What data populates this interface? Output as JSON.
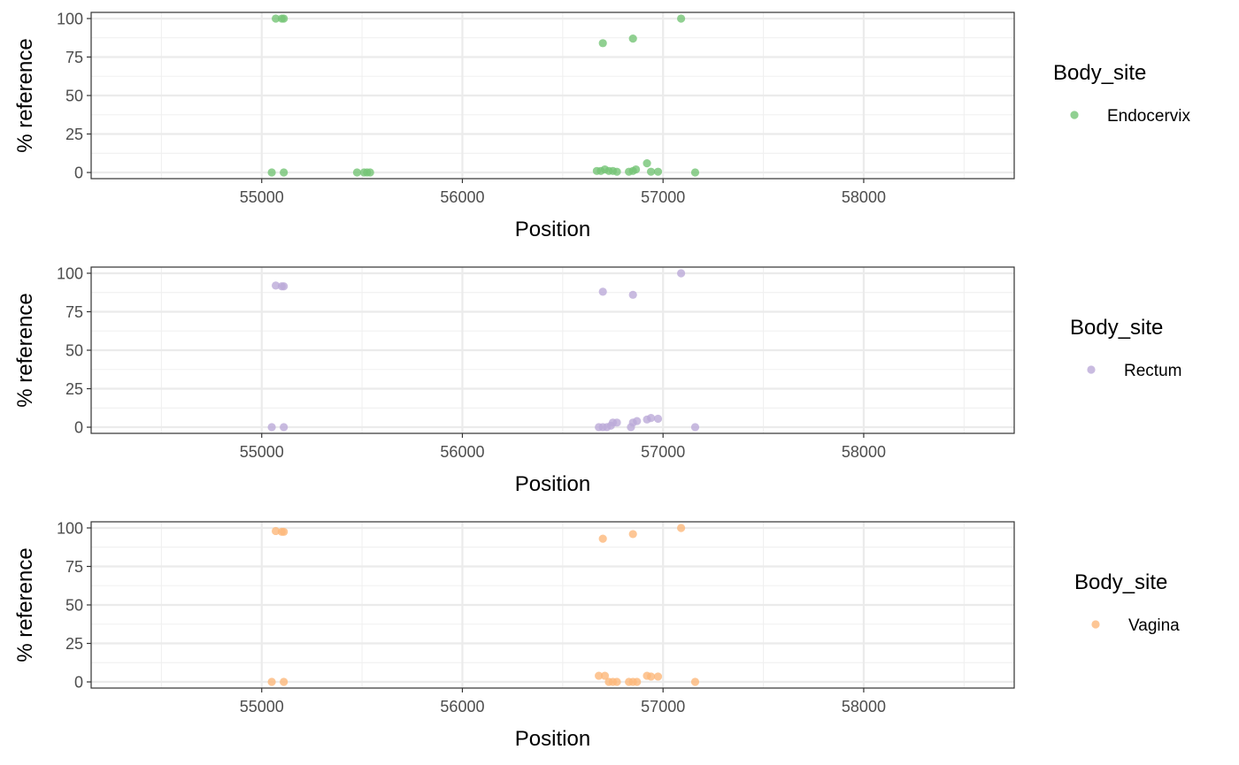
{
  "chart_data": [
    {
      "type": "scatter",
      "xlabel": "Position",
      "ylabel": "% reference",
      "xlim": [
        54150,
        58750
      ],
      "ylim": [
        -4,
        104
      ],
      "x_ticks": [
        55000,
        56000,
        57000,
        58000
      ],
      "x_tick_labels": [
        "55000",
        "56000",
        "57000",
        "58000"
      ],
      "y_ticks": [
        0,
        25,
        50,
        75,
        100
      ],
      "y_tick_labels": [
        "0",
        "25",
        "50",
        "75",
        "100"
      ],
      "grid": true,
      "legend": {
        "title": "Body_site",
        "entries": [
          "Endocervix"
        ],
        "placement": "right"
      },
      "series": [
        {
          "name": "Endocervix",
          "color": "#74c476",
          "points": [
            [
              55070,
              100
            ],
            [
              55100,
              100
            ],
            [
              55110,
              100
            ],
            [
              56700,
              84
            ],
            [
              56850,
              87
            ],
            [
              57090,
              100
            ],
            [
              55050,
              0
            ],
            [
              55110,
              0
            ],
            [
              55475,
              0
            ],
            [
              55510,
              0
            ],
            [
              55525,
              0
            ],
            [
              55540,
              0
            ],
            [
              56670,
              1
            ],
            [
              56690,
              1
            ],
            [
              56710,
              2
            ],
            [
              56730,
              1
            ],
            [
              56750,
              1
            ],
            [
              56770,
              0.5
            ],
            [
              56830,
              0.5
            ],
            [
              56850,
              1
            ],
            [
              56865,
              2
            ],
            [
              56920,
              6
            ],
            [
              56940,
              0.5
            ],
            [
              56975,
              0.5
            ],
            [
              57160,
              0
            ]
          ]
        }
      ]
    },
    {
      "type": "scatter",
      "xlabel": "Position",
      "ylabel": "% reference",
      "xlim": [
        54150,
        58750
      ],
      "ylim": [
        -4,
        104
      ],
      "x_ticks": [
        55000,
        56000,
        57000,
        58000
      ],
      "x_tick_labels": [
        "55000",
        "56000",
        "57000",
        "58000"
      ],
      "y_ticks": [
        0,
        25,
        50,
        75,
        100
      ],
      "y_tick_labels": [
        "0",
        "25",
        "50",
        "75",
        "100"
      ],
      "grid": true,
      "legend": {
        "title": "Body_site",
        "entries": [
          "Rectum"
        ],
        "placement": "right"
      },
      "series": [
        {
          "name": "Rectum",
          "color": "#bcaad8",
          "points": [
            [
              55070,
              92
            ],
            [
              55100,
              91.5
            ],
            [
              55110,
              91.5
            ],
            [
              56700,
              88
            ],
            [
              56850,
              86
            ],
            [
              57090,
              100
            ],
            [
              55050,
              0
            ],
            [
              55110,
              0
            ],
            [
              56680,
              0
            ],
            [
              56700,
              0
            ],
            [
              56720,
              0
            ],
            [
              56740,
              1
            ],
            [
              56750,
              3
            ],
            [
              56770,
              3
            ],
            [
              56840,
              0
            ],
            [
              56850,
              3
            ],
            [
              56870,
              4
            ],
            [
              56920,
              5
            ],
            [
              56940,
              6
            ],
            [
              56975,
              5.5
            ],
            [
              57160,
              0
            ]
          ]
        }
      ]
    },
    {
      "type": "scatter",
      "xlabel": "Position",
      "ylabel": "% reference",
      "xlim": [
        54150,
        58750
      ],
      "ylim": [
        -4,
        104
      ],
      "x_ticks": [
        55000,
        56000,
        57000,
        58000
      ],
      "x_tick_labels": [
        "55000",
        "56000",
        "57000",
        "58000"
      ],
      "y_ticks": [
        0,
        25,
        50,
        75,
        100
      ],
      "y_tick_labels": [
        "0",
        "25",
        "50",
        "75",
        "100"
      ],
      "grid": true,
      "legend": {
        "title": "Body_site",
        "entries": [
          "Vagina"
        ],
        "placement": "right"
      },
      "series": [
        {
          "name": "Vagina",
          "color": "#fdb87a",
          "points": [
            [
              55070,
              98
            ],
            [
              55100,
              97.5
            ],
            [
              55110,
              97.5
            ],
            [
              56700,
              93
            ],
            [
              56850,
              96
            ],
            [
              57090,
              100
            ],
            [
              55050,
              0
            ],
            [
              55110,
              0
            ],
            [
              56680,
              4
            ],
            [
              56710,
              4
            ],
            [
              56730,
              0
            ],
            [
              56750,
              0
            ],
            [
              56770,
              0
            ],
            [
              56830,
              0
            ],
            [
              56850,
              0
            ],
            [
              56870,
              0
            ],
            [
              56920,
              4
            ],
            [
              56940,
              3.5
            ],
            [
              56975,
              3.5
            ],
            [
              57160,
              0
            ]
          ]
        }
      ]
    }
  ]
}
